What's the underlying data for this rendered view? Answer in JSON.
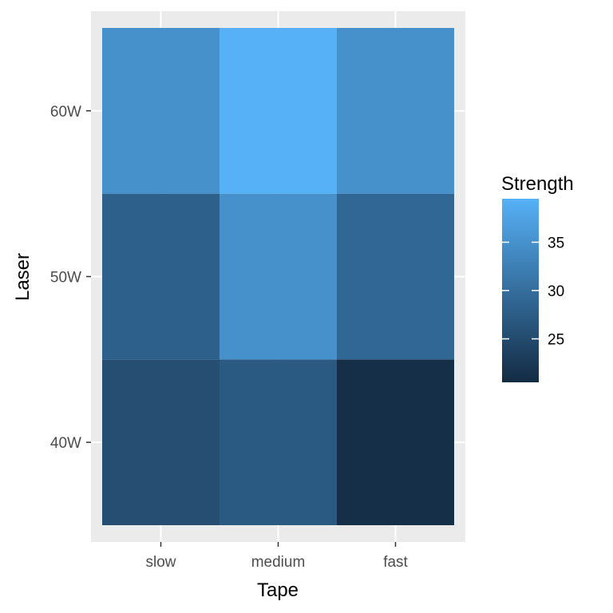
{
  "chart_data": {
    "type": "heatmap",
    "x_categories": [
      "slow",
      "medium",
      "fast"
    ],
    "y_categories": [
      "40W",
      "50W",
      "60W"
    ],
    "values": [
      [
        25.5,
        27.0,
        21.0
      ],
      [
        28.0,
        35.0,
        29.0
      ],
      [
        35.0,
        39.5,
        35.0
      ]
    ],
    "xlabel": "Tape",
    "ylabel": "Laser",
    "legend": {
      "title": "Strength",
      "ticks": [
        "25",
        "30",
        "35"
      ],
      "tick_values": [
        25,
        30,
        35
      ],
      "range": [
        20.5,
        39.5
      ],
      "placement": "right"
    },
    "colors": {
      "low": "#132B43",
      "high": "#56B1F7",
      "panel_background": "#EBEBEB",
      "grid": "#FFFFFF"
    },
    "grid": true
  }
}
